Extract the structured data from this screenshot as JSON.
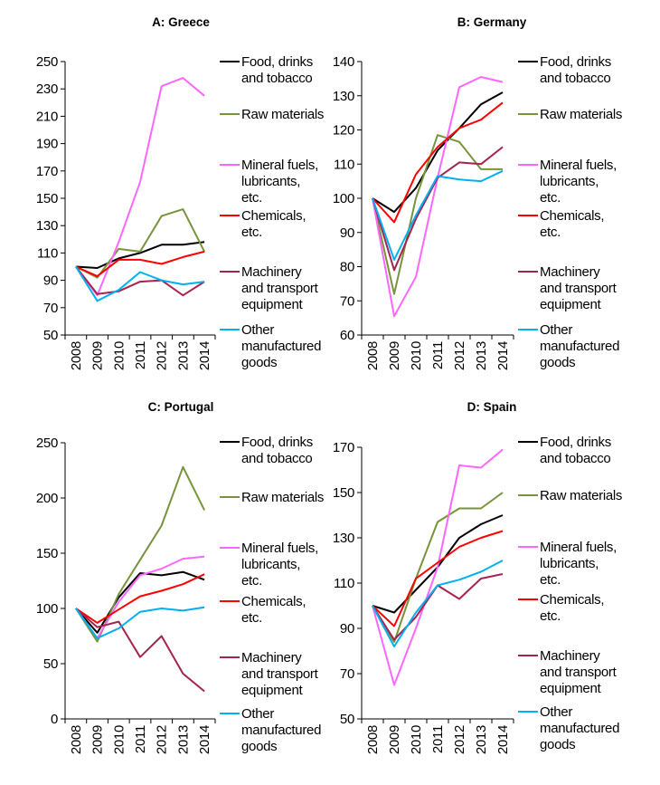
{
  "chart_data": [
    {
      "type": "line",
      "title": "A: Greece",
      "x": [
        "2008",
        "2009",
        "2010",
        "2011",
        "2012",
        "2013",
        "2014"
      ],
      "ylim": [
        50,
        250
      ],
      "yticks": [
        "250",
        "230",
        "210",
        "190",
        "170",
        "150",
        "130",
        "110",
        "90",
        "70",
        "50"
      ],
      "grid": false,
      "legend_position": "right",
      "series": [
        {
          "name": "Food, drinks and tobacco",
          "legend_lines": [
            "Food, drinks",
            "and tobacco"
          ],
          "color": "#000000",
          "values": [
            100,
            99,
            106,
            110,
            116,
            116,
            118
          ]
        },
        {
          "name": "Raw materials",
          "legend_lines": [
            "Raw materials"
          ],
          "color": "#77933c",
          "values": [
            100,
            92,
            113,
            111,
            137,
            142,
            111
          ]
        },
        {
          "name": "Mineral fuels, lubricants, etc.",
          "legend_lines": [
            "Mineral fuels,",
            "lubricants,",
            "etc."
          ],
          "color": "#ff66ff",
          "values": [
            100,
            79,
            118,
            162,
            232,
            238,
            225
          ]
        },
        {
          "name": "Chemicals, etc.",
          "legend_lines": [
            "Chemicals,",
            "etc."
          ],
          "color": "#ff0000",
          "values": [
            100,
            93,
            105,
            105,
            102,
            107,
            111
          ]
        },
        {
          "name": "Machinery and transport equipment",
          "legend_lines": [
            "Machinery",
            "and transport",
            "equipment"
          ],
          "color": "#a5234f",
          "values": [
            100,
            80,
            82,
            89,
            90,
            79,
            89
          ]
        },
        {
          "name": "Other manufactured goods",
          "legend_lines": [
            "Other",
            "manufactured",
            "goods"
          ],
          "color": "#00b0f0",
          "values": [
            100,
            75,
            83,
            96,
            90,
            87,
            89
          ]
        }
      ]
    },
    {
      "type": "line",
      "title": "B: Germany",
      "x": [
        "2008",
        "2009",
        "2010",
        "2011",
        "2012",
        "2013",
        "2014"
      ],
      "ylim": [
        60,
        140
      ],
      "yticks": [
        "140",
        "130",
        "120",
        "110",
        "100",
        "90",
        "80",
        "70",
        "60"
      ],
      "grid": false,
      "legend_position": "right",
      "series": [
        {
          "name": "Food, drinks and tobacco",
          "legend_lines": [
            "Food, drinks",
            "and tobacco"
          ],
          "color": "#000000",
          "values": [
            100,
            96,
            103,
            114,
            120.5,
            127.5,
            131
          ]
        },
        {
          "name": "Raw materials",
          "legend_lines": [
            "Raw materials"
          ],
          "color": "#77933c",
          "values": [
            100,
            72,
            100,
            118.5,
            116.5,
            108.5,
            108.5
          ]
        },
        {
          "name": "Mineral fuels, lubricants, etc.",
          "legend_lines": [
            "Mineral fuels,",
            "lubricants,",
            "etc."
          ],
          "color": "#ff66ff",
          "values": [
            100,
            65.5,
            77,
            106,
            132.5,
            135.5,
            134
          ]
        },
        {
          "name": "Chemicals, etc.",
          "legend_lines": [
            "Chemicals,",
            "etc."
          ],
          "color": "#ff0000",
          "values": [
            100,
            93,
            107,
            115,
            120.5,
            123,
            128
          ]
        },
        {
          "name": "Machinery and transport equipment",
          "legend_lines": [
            "Machinery",
            "and transport",
            "equipment"
          ],
          "color": "#a5234f",
          "values": [
            100,
            79,
            94,
            106,
            110.5,
            110,
            115
          ]
        },
        {
          "name": "Other manufactured goods",
          "legend_lines": [
            "Other",
            "manufactured",
            "goods"
          ],
          "color": "#00b0f0",
          "values": [
            100,
            82,
            95,
            106.5,
            105.5,
            105,
            108
          ]
        }
      ]
    },
    {
      "type": "line",
      "title": "C: Portugal",
      "x": [
        "2008",
        "2009",
        "2010",
        "2011",
        "2012",
        "2013",
        "2014"
      ],
      "ylim": [
        0,
        250
      ],
      "yticks": [
        "250",
        "200",
        "150",
        "100",
        "50",
        "0"
      ],
      "grid": false,
      "legend_position": "right",
      "series": [
        {
          "name": "Food, drinks and tobacco",
          "legend_lines": [
            "Food, drinks",
            "and tobacco"
          ],
          "color": "#000000",
          "values": [
            100,
            78,
            110,
            132,
            130,
            133,
            126
          ]
        },
        {
          "name": "Raw materials",
          "legend_lines": [
            "Raw materials"
          ],
          "color": "#77933c",
          "values": [
            100,
            70,
            113,
            144,
            175,
            228,
            189
          ]
        },
        {
          "name": "Mineral fuels, lubricants, etc.",
          "legend_lines": [
            "Mineral fuels,",
            "lubricants,",
            "etc."
          ],
          "color": "#ff66ff",
          "values": [
            100,
            73,
            106,
            130,
            136,
            145,
            147
          ]
        },
        {
          "name": "Chemicals, etc.",
          "legend_lines": [
            "Chemicals,",
            "etc."
          ],
          "color": "#ff0000",
          "values": [
            100,
            87,
            99,
            111,
            116,
            122,
            131
          ]
        },
        {
          "name": "Machinery and transport equipment",
          "legend_lines": [
            "Machinery",
            "and transport",
            "equipment"
          ],
          "color": "#a5234f",
          "values": [
            100,
            83,
            88,
            56,
            75,
            41,
            25
          ]
        },
        {
          "name": "Other manufactured goods",
          "legend_lines": [
            "Other",
            "manufactured",
            "goods"
          ],
          "color": "#00b0f0",
          "values": [
            100,
            73,
            82,
            97,
            100,
            98,
            101
          ]
        }
      ]
    },
    {
      "type": "line",
      "title": "D: Spain",
      "x": [
        "2008",
        "2009",
        "2010",
        "2011",
        "2012",
        "2013",
        "2014"
      ],
      "ylim": [
        50,
        170
      ],
      "yticks": [
        "170",
        "150",
        "130",
        "110",
        "90",
        "70",
        "50"
      ],
      "grid": false,
      "legend_position": "right",
      "series": [
        {
          "name": "Food, drinks and tobacco",
          "legend_lines": [
            "Food, drinks",
            "and tobacco"
          ],
          "color": "#000000",
          "values": [
            100,
            97,
            107,
            117,
            130,
            136,
            140
          ]
        },
        {
          "name": "Raw materials",
          "legend_lines": [
            "Raw materials"
          ],
          "color": "#77933c",
          "values": [
            100,
            84,
            112,
            137,
            143,
            143,
            150
          ]
        },
        {
          "name": "Mineral fuels, lubricants, etc.",
          "legend_lines": [
            "Mineral fuels,",
            "lubricants,",
            "etc."
          ],
          "color": "#ff66ff",
          "values": [
            100,
            65,
            90,
            117,
            162,
            161,
            169
          ]
        },
        {
          "name": "Chemicals, etc.",
          "legend_lines": [
            "Chemicals,",
            "etc."
          ],
          "color": "#ff0000",
          "values": [
            100,
            91,
            112,
            119,
            126,
            130,
            133
          ]
        },
        {
          "name": "Machinery and transport equipment",
          "legend_lines": [
            "Machinery",
            "and transport",
            "equipment"
          ],
          "color": "#a5234f",
          "values": [
            100,
            85,
            95,
            109,
            103,
            112,
            114
          ]
        },
        {
          "name": "Other manufactured goods",
          "legend_lines": [
            "Other",
            "manufactured",
            "goods"
          ],
          "color": "#00b0f0",
          "values": [
            100,
            82,
            97,
            109,
            111.5,
            115,
            120
          ]
        }
      ]
    }
  ]
}
